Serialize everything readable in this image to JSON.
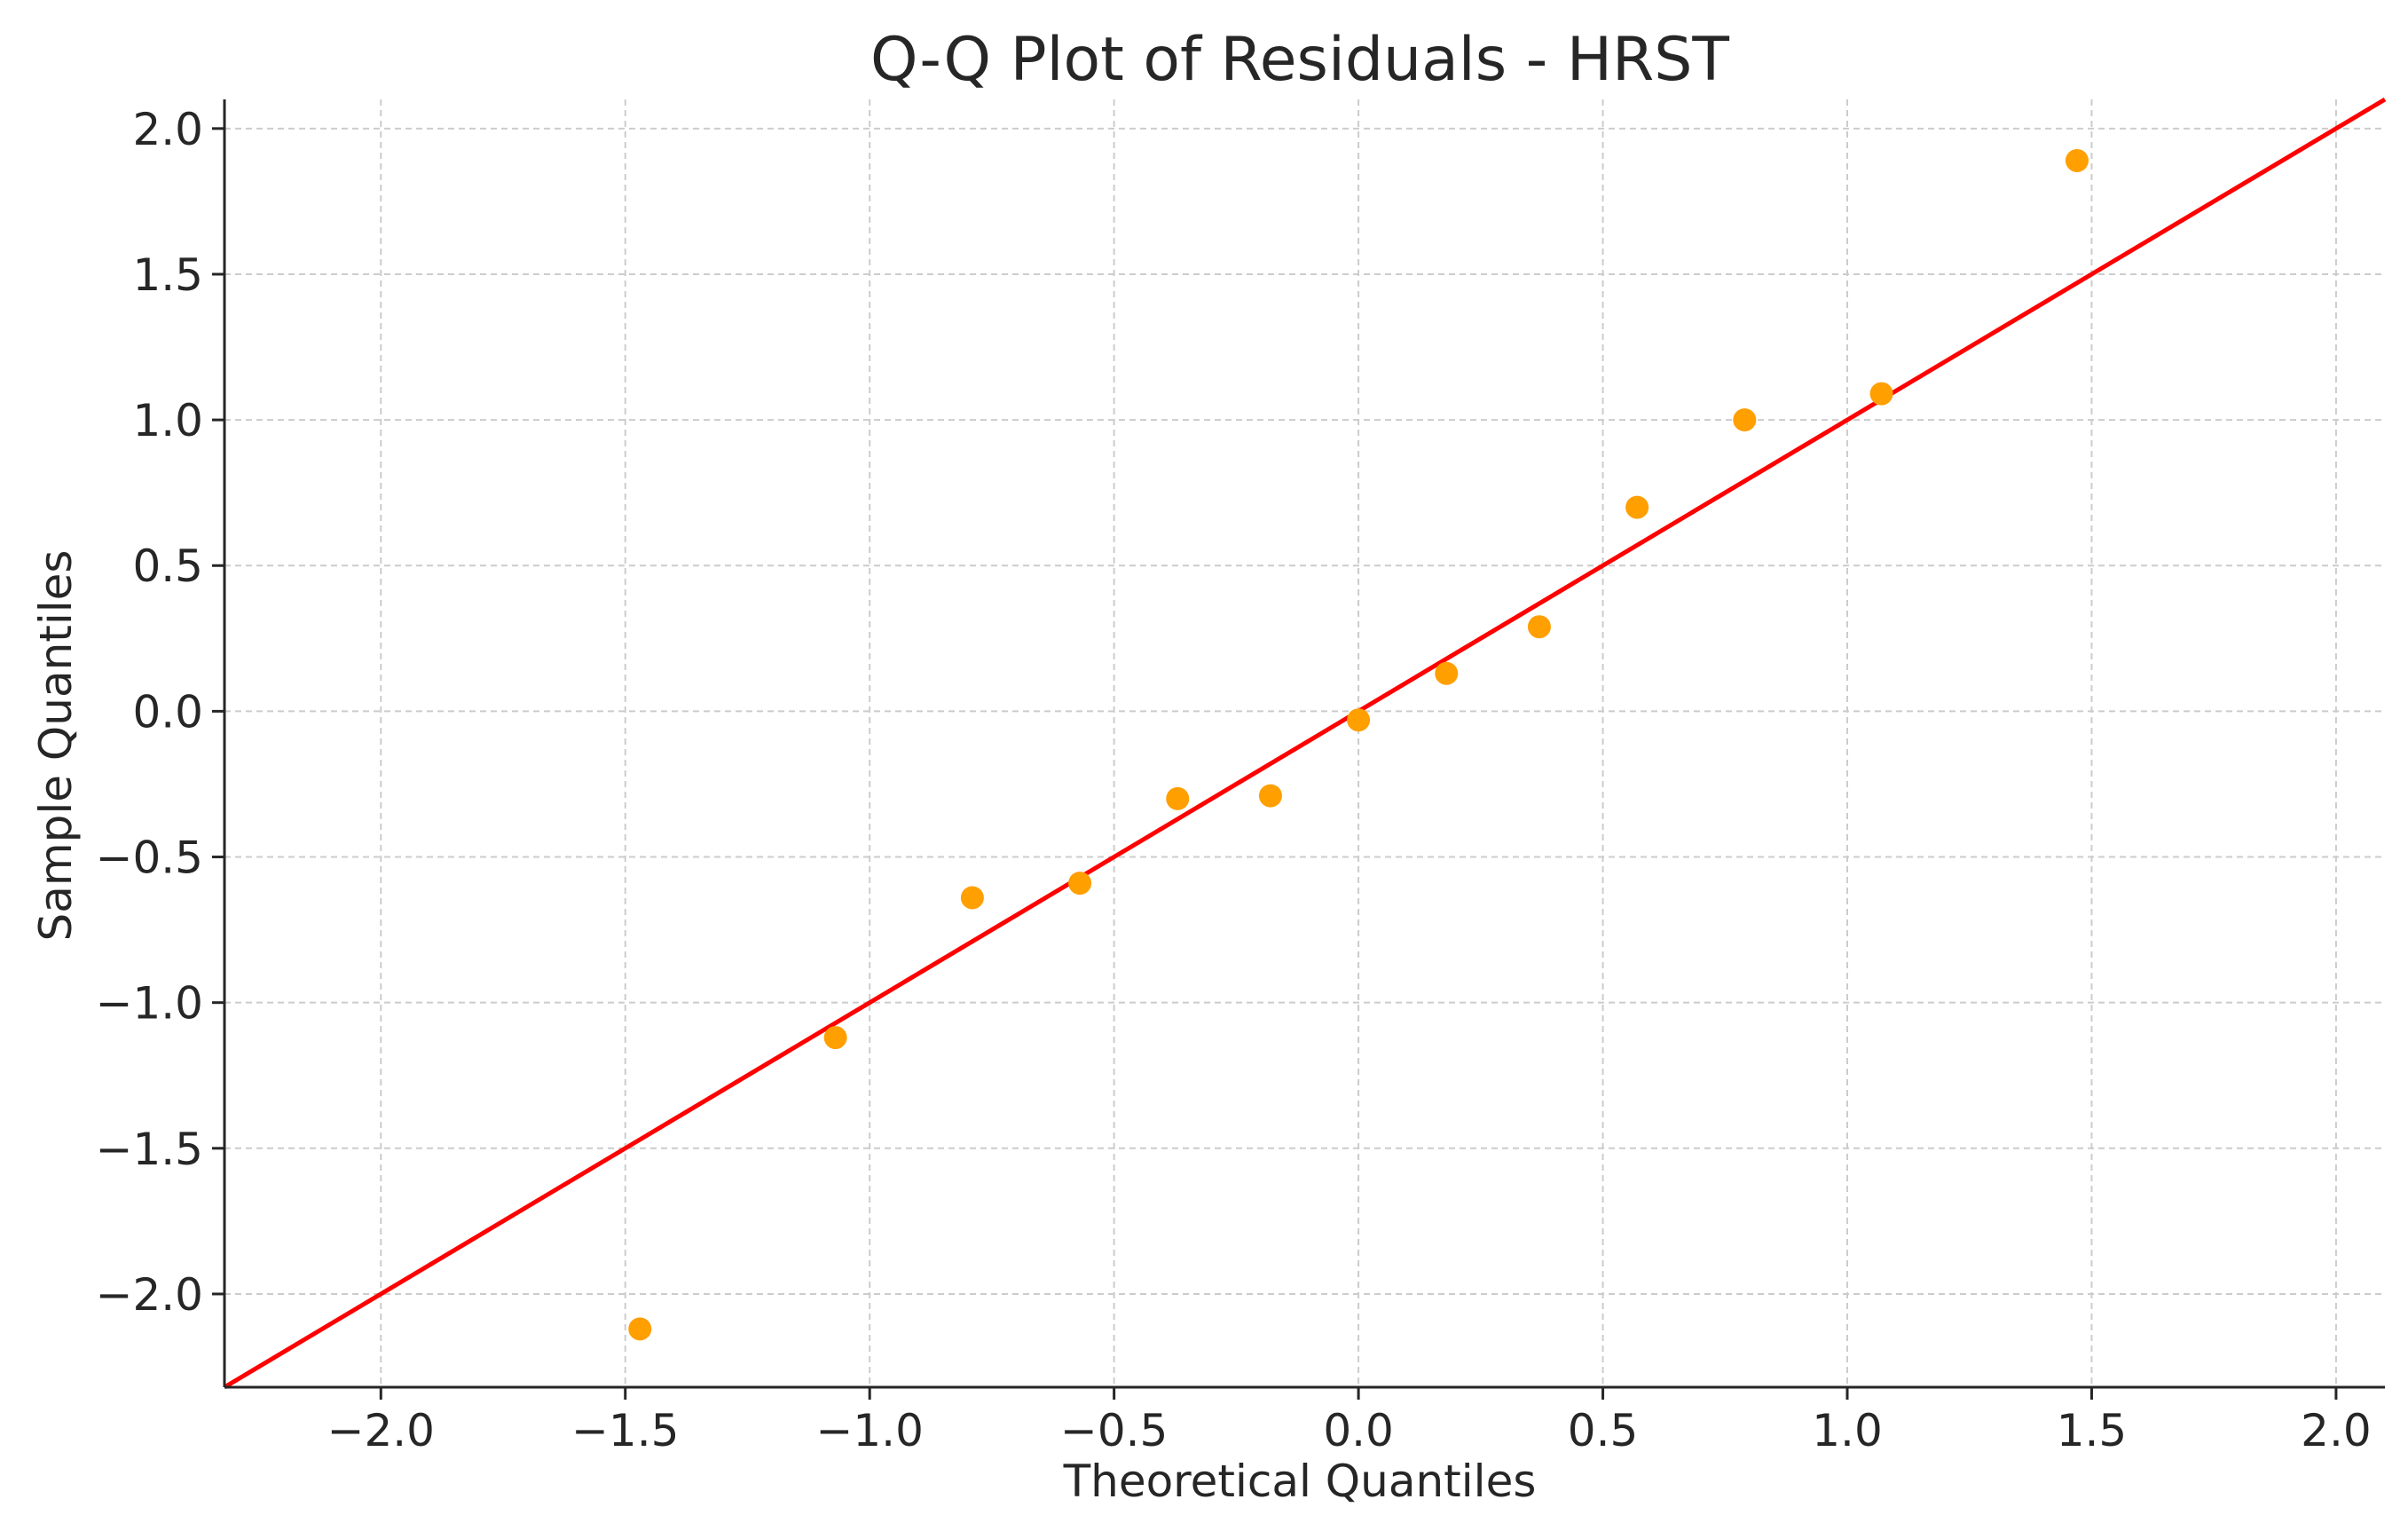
{
  "chart_data": {
    "type": "scatter",
    "title": "Q-Q Plot of Residuals - HRST",
    "xlabel": "Theoretical Quantiles",
    "ylabel": "Sample Quantiles",
    "xlim": [
      -2.32,
      2.1
    ],
    "ylim": [
      -2.32,
      2.1
    ],
    "x_ticks": [
      -2.0,
      -1.5,
      -1.0,
      -0.5,
      0.0,
      0.5,
      1.0,
      1.5,
      2.0
    ],
    "x_tick_labels": [
      "−2.0",
      "−1.5",
      "−1.0",
      "−0.5",
      "0.0",
      "0.5",
      "1.0",
      "1.5",
      "2.0"
    ],
    "y_ticks": [
      -2.0,
      -1.5,
      -1.0,
      -0.5,
      0.0,
      0.5,
      1.0,
      1.5,
      2.0
    ],
    "y_tick_labels": [
      "−2.0",
      "−1.5",
      "−1.0",
      "−0.5",
      "0.0",
      "0.5",
      "1.0",
      "1.5",
      "2.0"
    ],
    "grid": true,
    "series": [
      {
        "x": [
          -1.47,
          -1.07,
          -0.79,
          -0.57,
          -0.37,
          -0.18,
          0.0,
          0.18,
          0.37,
          0.57,
          0.79,
          1.07,
          1.47
        ],
        "y": [
          -2.12,
          -1.12,
          -0.64,
          -0.59,
          -0.3,
          -0.29,
          -0.03,
          0.13,
          0.29,
          0.7,
          1.0,
          1.09,
          1.89
        ],
        "color": "#ff9f00"
      }
    ],
    "reference_line": {
      "x": [
        -2.32,
        2.1
      ],
      "y": [
        -2.32,
        2.1
      ],
      "color": "#ff0000"
    }
  }
}
